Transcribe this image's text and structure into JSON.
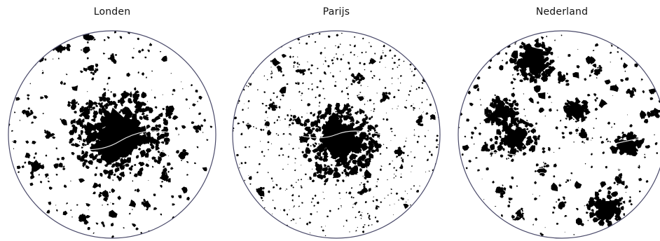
{
  "maps": [
    {
      "id": "london",
      "title": "Londen",
      "core_density": "very-high",
      "pattern": "dense-core-with-scattered-towns"
    },
    {
      "id": "paris",
      "title": "Parijs",
      "core_density": "high",
      "pattern": "dense-core-with-many-small-villages"
    },
    {
      "id": "netherlands",
      "title": "Nederland",
      "core_density": "medium",
      "pattern": "polycentric-network-of-cities"
    }
  ],
  "colors": {
    "built_area": "#000000",
    "background": "#ffffff",
    "circle_outline": "#4a4a6a",
    "rivers": "#ffffff"
  }
}
